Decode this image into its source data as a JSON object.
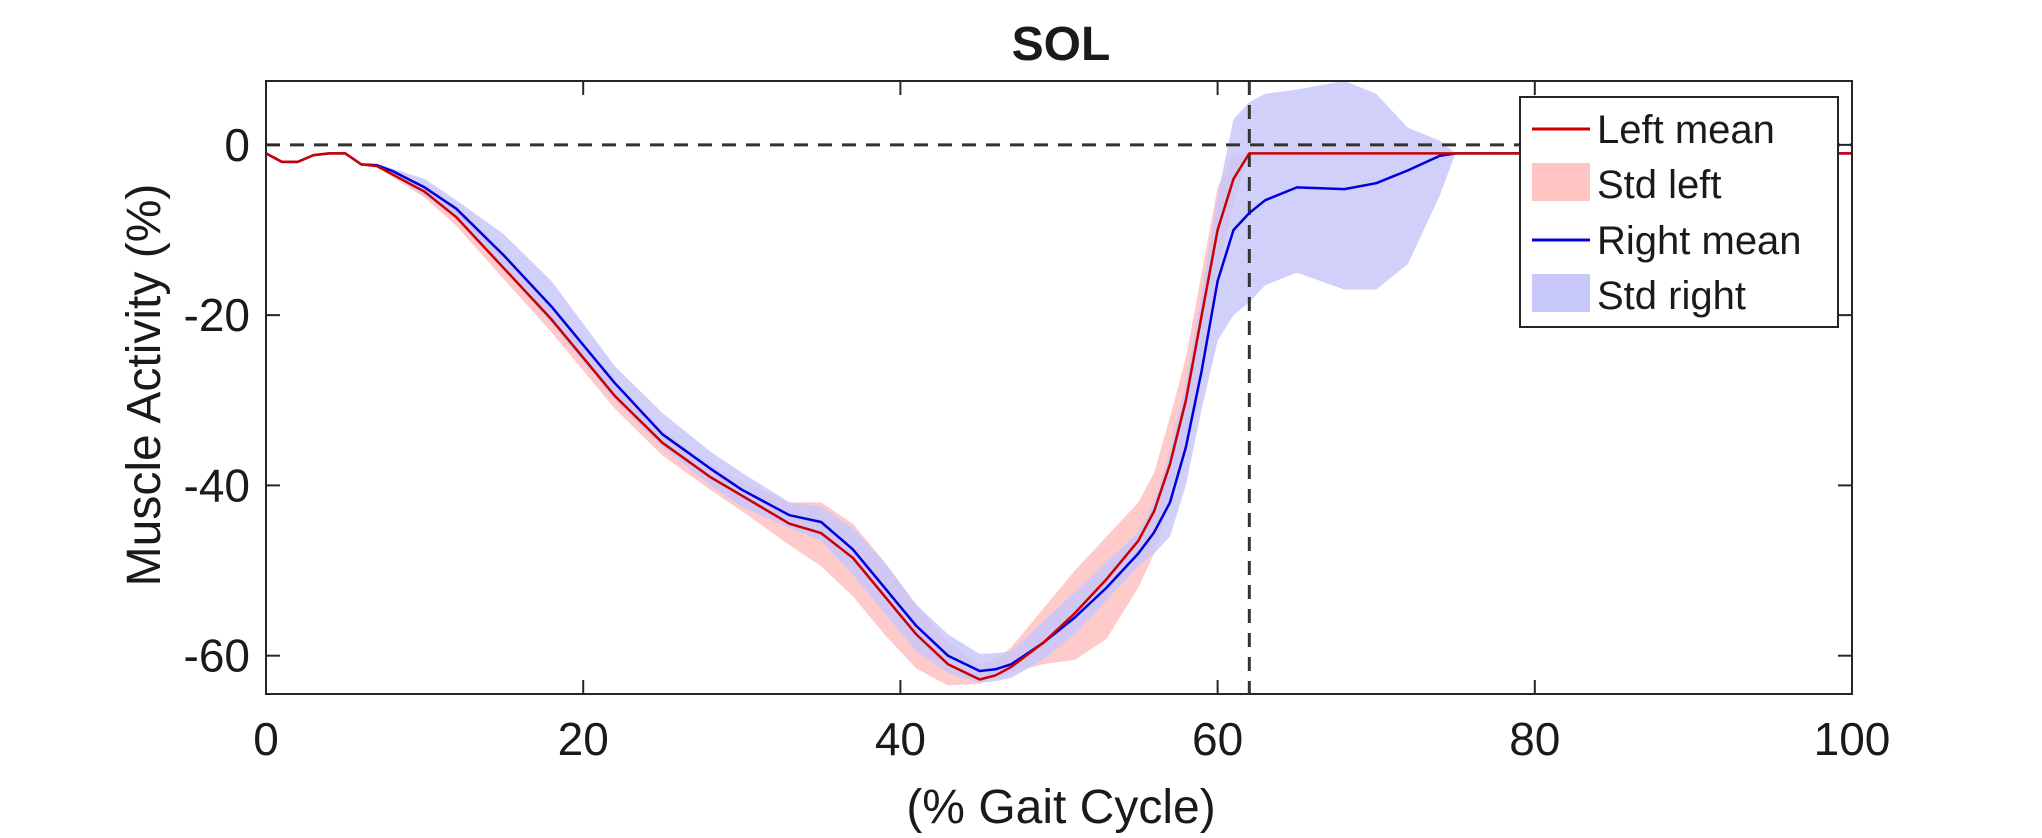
{
  "chart_data": {
    "type": "line",
    "title": "SOL",
    "xlabel": "(% Gait Cycle)",
    "ylabel": "Muscle Activity (%)",
    "xlim": [
      0,
      100
    ],
    "ylim": [
      -64.5,
      7.5
    ],
    "xticks": [
      0,
      20,
      40,
      60,
      80,
      100
    ],
    "yticks": [
      -60,
      -40,
      -20,
      0
    ],
    "grid": false,
    "legend_position": "top-right",
    "reference_lines": [
      {
        "orientation": "horizontal",
        "value": 0,
        "style": "dashed",
        "color": "#333333"
      },
      {
        "orientation": "vertical",
        "value": 62,
        "style": "dashed",
        "color": "#333333"
      }
    ],
    "x": [
      0,
      1,
      2,
      3,
      4,
      5,
      6,
      7,
      8,
      10,
      12,
      15,
      18,
      20,
      22,
      25,
      28,
      30,
      33,
      35,
      37,
      39,
      41,
      43,
      45,
      46,
      47,
      49,
      51,
      53,
      55,
      56,
      57,
      58,
      59,
      60,
      61,
      62,
      63,
      65,
      68,
      70,
      72,
      74,
      75,
      80,
      85,
      90,
      95,
      100
    ],
    "series": [
      {
        "name": "Left mean",
        "color": "#cc0000",
        "values": [
          -1,
          -2,
          -2,
          -1.2,
          -1,
          -1,
          -2.3,
          -2.5,
          -3.5,
          -5.5,
          -8.5,
          -14.5,
          -20.5,
          -25,
          -29.5,
          -35,
          -39,
          -41.2,
          -44.5,
          -45.6,
          -48.5,
          -53,
          -57.5,
          -61,
          -62.8,
          -62.3,
          -61.3,
          -58.5,
          -55,
          -51,
          -46.5,
          -43,
          -37.5,
          -30,
          -20,
          -10,
          -4,
          -1,
          -1,
          -1,
          -1,
          -1,
          -1,
          -1,
          -1,
          -1,
          -1,
          -1,
          -1,
          -1
        ]
      },
      {
        "name": "Std left",
        "color": "#ffc4c4",
        "lower": [
          -1,
          -2,
          -2,
          -1.2,
          -1,
          -1,
          -2.3,
          -2.6,
          -3.8,
          -6.2,
          -9.5,
          -15.8,
          -22,
          -26.5,
          -31,
          -36.5,
          -40.5,
          -43,
          -47,
          -49.5,
          -53,
          -57.5,
          -61.5,
          -63.5,
          -63.3,
          -62.6,
          -62,
          -61,
          -60.5,
          -58,
          -52,
          -48,
          -42,
          -35,
          -25,
          -15,
          -7,
          -1,
          -1,
          -1,
          -1,
          -1,
          -1,
          -1,
          -1,
          -1,
          -1,
          -1,
          -1,
          -1
        ],
        "upper": [
          -1,
          -2,
          -2,
          -1.2,
          -1,
          -1,
          -2.3,
          -2.4,
          -3.2,
          -4.8,
          -7.5,
          -13.2,
          -19,
          -23.5,
          -28,
          -33.5,
          -37.5,
          -39.5,
          -42,
          -42,
          -44.5,
          -49,
          -54,
          -58.5,
          -61,
          -60.5,
          -59,
          -54.5,
          -50,
          -46,
          -42,
          -38.5,
          -32,
          -25,
          -15,
          -5,
          -1,
          -1,
          -1,
          -1,
          -1,
          -1,
          -1,
          -1,
          -1,
          -1,
          -1,
          -1,
          -1,
          -1
        ]
      },
      {
        "name": "Right mean",
        "color": "#0000dd",
        "values": [
          -1,
          -2,
          -2,
          -1.2,
          -1,
          -1,
          -2.3,
          -2.4,
          -3.1,
          -5,
          -7.5,
          -13,
          -19,
          -23.5,
          -28,
          -34,
          -38,
          -40.5,
          -43.5,
          -44.3,
          -47.5,
          -52,
          -56.5,
          -60,
          -61.8,
          -61.6,
          -61,
          -58.5,
          -55.5,
          -52,
          -48,
          -45.5,
          -42,
          -35.5,
          -26.5,
          -16,
          -10,
          -8,
          -6.5,
          -5,
          -5.2,
          -4.5,
          -3,
          -1.3,
          -1,
          -1,
          -1,
          -1,
          -1,
          -1
        ]
      },
      {
        "name": "Std right",
        "color": "#c8c8fa",
        "lower": [
          -1,
          -2,
          -2,
          -1.2,
          -1,
          -1,
          -2.3,
          -2.6,
          -3.6,
          -6,
          -8.5,
          -14.5,
          -21,
          -25.5,
          -30,
          -35.5,
          -40,
          -42.5,
          -45,
          -46.5,
          -50.5,
          -55,
          -59.5,
          -62,
          -63.2,
          -63,
          -62.6,
          -60.5,
          -57.5,
          -53.5,
          -49.5,
          -48,
          -46,
          -40,
          -31,
          -23,
          -20,
          -18.5,
          -16.5,
          -15,
          -17,
          -17,
          -14,
          -6,
          -1,
          -1,
          -1,
          -1,
          -1,
          -1
        ],
        "upper": [
          -1,
          -2,
          -2,
          -1.2,
          -1,
          -1,
          -2.3,
          -2.2,
          -2.8,
          -4,
          -6.5,
          -10.5,
          -16,
          -21,
          -26,
          -31.5,
          -36,
          -38.5,
          -42,
          -42.5,
          -45,
          -49,
          -54,
          -57.5,
          -59.8,
          -59.7,
          -59.5,
          -56,
          -52.5,
          -49,
          -45.5,
          -42,
          -36,
          -28,
          -17.5,
          -6,
          3,
          5,
          6,
          6.5,
          7.5,
          6,
          2,
          0.5,
          -1,
          -1,
          -1,
          -1,
          -1,
          -1
        ]
      }
    ]
  }
}
